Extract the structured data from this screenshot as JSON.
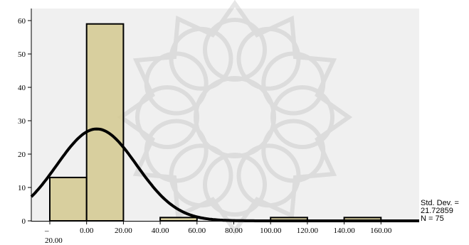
{
  "chart_data": {
    "type": "bar",
    "subtype": "histogram-with-normal-curve",
    "title": "",
    "xlabel": "",
    "ylabel": "",
    "bins": [
      {
        "from": -20,
        "to": 0,
        "count": 13
      },
      {
        "from": 0,
        "to": 20,
        "count": 59
      },
      {
        "from": 20,
        "to": 40,
        "count": 0
      },
      {
        "from": 40,
        "to": 60,
        "count": 1
      },
      {
        "from": 60,
        "to": 80,
        "count": 0
      },
      {
        "from": 80,
        "to": 100,
        "count": 0
      },
      {
        "from": 100,
        "to": 120,
        "count": 1
      },
      {
        "from": 120,
        "to": 140,
        "count": 0
      },
      {
        "from": 140,
        "to": 160,
        "count": 1
      }
    ],
    "x_ticks": [
      "–20.00",
      "0.00",
      "20.00",
      "40.00",
      "60.00",
      "80.00",
      "100.00",
      "120.00",
      "140.00",
      "160.00"
    ],
    "x_tick_values": [
      -20,
      0,
      20,
      40,
      60,
      80,
      100,
      120,
      140,
      160
    ],
    "y_ticks": [
      0,
      10,
      20,
      30,
      40,
      50,
      60
    ],
    "xlim": [
      -30,
      190
    ],
    "ylim": [
      0,
      64
    ],
    "normal_curve": {
      "mean": 5.5,
      "std_dev": 21.72859,
      "n": 75,
      "bin_width": 20
    },
    "grid": false,
    "colors": {
      "bar_fill": "#d4c98f",
      "bar_stroke": "#000000",
      "curve": "#000000",
      "plot_background": "#f0f0f0"
    }
  },
  "stats": {
    "std_dev_line1": "Std. Dev. =",
    "std_dev_line2": "21.72859",
    "n_line": "N = 75"
  }
}
